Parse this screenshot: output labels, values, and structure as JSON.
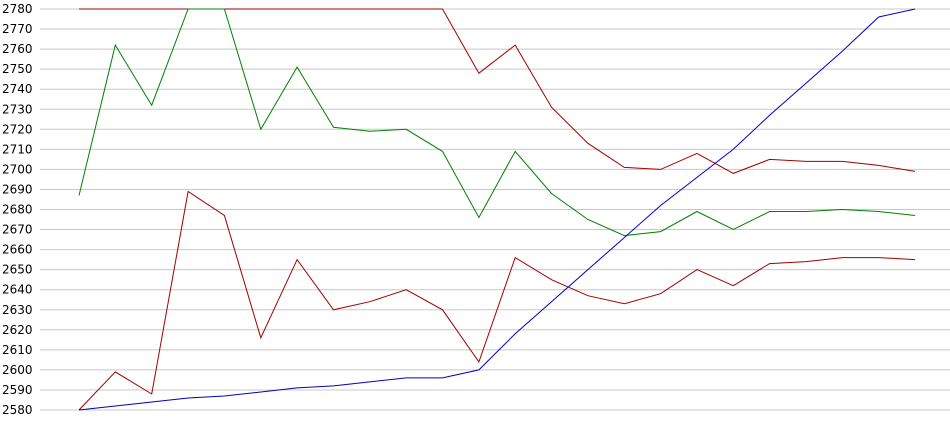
{
  "chart_data": {
    "type": "line",
    "title": "",
    "xlabel": "",
    "ylabel": "",
    "ylim": [
      2580,
      2780
    ],
    "yticks": [
      2580,
      2590,
      2600,
      2610,
      2620,
      2630,
      2640,
      2650,
      2660,
      2670,
      2680,
      2690,
      2700,
      2710,
      2720,
      2730,
      2740,
      2750,
      2760,
      2770,
      2780
    ],
    "x": [
      0,
      1,
      2,
      3,
      4,
      5,
      6,
      7,
      8,
      9,
      10,
      11,
      12,
      13,
      14,
      15,
      16,
      17,
      18,
      19,
      20,
      21,
      22,
      23
    ],
    "grid": true,
    "series": [
      {
        "color": "#a00000",
        "values": [
          2780,
          2780,
          2780,
          2780,
          2780,
          2780,
          2780,
          2780,
          2780,
          2780,
          2780,
          2748,
          2762,
          2731,
          2713,
          2701,
          2700,
          2708,
          2698,
          2705,
          2704,
          2704,
          2702,
          2699
        ]
      },
      {
        "color": "#008000",
        "values": [
          2687,
          2762,
          2732,
          2780,
          2780,
          2720,
          2751,
          2721,
          2719,
          2720,
          2709,
          2676,
          2709,
          2688,
          2675,
          2667,
          2669,
          2679,
          2670,
          2679,
          2679,
          2680,
          2679,
          2677
        ]
      },
      {
        "color": "#a00000",
        "values": [
          2580,
          2599,
          2588,
          2689,
          2677,
          2616,
          2655,
          2630,
          2634,
          2640,
          2630,
          2604,
          2656,
          2645,
          2637,
          2633,
          2638,
          2650,
          2642,
          2653,
          2654,
          2656,
          2656,
          2655
        ]
      },
      {
        "color": "#0000c0",
        "values": [
          2580,
          2582,
          2584,
          2586,
          2587,
          2589,
          2591,
          2592,
          2594,
          2596,
          2596,
          2600,
          2618,
          2634,
          2650,
          2666,
          2682,
          2696,
          2710,
          2727,
          2743,
          2759,
          2776,
          2780
        ]
      }
    ]
  }
}
